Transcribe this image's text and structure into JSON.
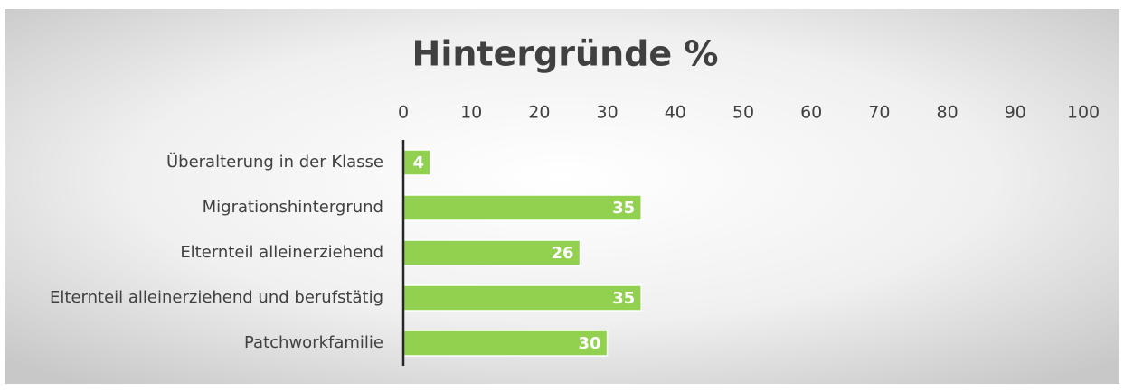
{
  "chart_data": {
    "type": "bar",
    "orientation": "horizontal",
    "title": "Hintergründe %",
    "categories": [
      "Überalterung in der Klasse",
      "Migrationshintergrund",
      "Elternteil alleinerziehend",
      "Elternteil alleinerziehend und berufstätig",
      "Patchworkfamilie"
    ],
    "values": [
      4,
      35,
      26,
      35,
      30
    ],
    "color": "#92d050",
    "xlim": [
      0,
      100
    ],
    "xticks": [
      0,
      10,
      20,
      30,
      40,
      50,
      60,
      70,
      80,
      90,
      100
    ],
    "grid": false
  }
}
